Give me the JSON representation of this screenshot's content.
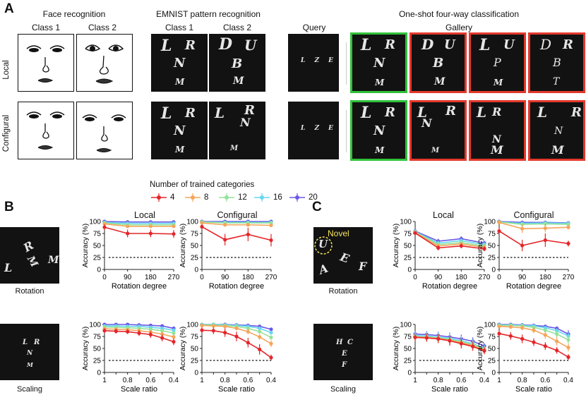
{
  "panel_labels": {
    "a": "A",
    "b": "B",
    "c": "C"
  },
  "sectionA": {
    "face_title": "Face recognition",
    "emnist_title": "EMNIST pattern recognition",
    "oneshot_title": "One-shot four-way classification",
    "class1": "Class 1",
    "class2": "Class 2",
    "query": "Query",
    "gallery": "Gallery",
    "row_local": "Local",
    "row_configural": "Configural",
    "emnist_local": [
      [
        "L",
        "R",
        "N",
        "M"
      ],
      [
        "D",
        "U",
        "B",
        "M"
      ]
    ],
    "emnist_configural": [
      [
        "L",
        "R",
        "N",
        "M"
      ],
      [
        "L",
        "R",
        "N",
        "M"
      ]
    ],
    "gallery_local": [
      [
        "L",
        "R",
        "N",
        "M"
      ],
      [
        "D",
        "U",
        "B",
        "M"
      ],
      [
        "L",
        "U",
        "P",
        "M"
      ],
      [
        "D",
        "R",
        "B",
        "T"
      ]
    ],
    "gallery_configural": [
      [
        "L",
        "R",
        "N",
        "M"
      ],
      [
        "L",
        "R",
        "N",
        "M"
      ],
      [
        "L",
        "R",
        "N",
        "M"
      ],
      [
        "L",
        "R",
        "N",
        "M"
      ]
    ],
    "query_glyphs": "L Z E"
  },
  "legend": {
    "title": "Number of trained categories",
    "items": [
      {
        "label": "4",
        "color": "#e4262a"
      },
      {
        "label": "8",
        "color": "#f5a55a"
      },
      {
        "label": "12",
        "color": "#95e29a"
      },
      {
        "label": "16",
        "color": "#66d7ef"
      },
      {
        "label": "20",
        "color": "#6a58e6"
      }
    ]
  },
  "sectionB": {
    "col_local": "Local",
    "col_configural": "Configural",
    "rot_caption": "Rotation",
    "scale_caption": "Scaling",
    "rot_glyphs": [
      "L",
      "R",
      "M",
      "M"
    ],
    "scale_glyphs": [
      "L",
      "R",
      "N",
      "M"
    ]
  },
  "sectionC": {
    "col_local": "Local",
    "col_configural": "Configural",
    "rot_caption": "Rotation",
    "scale_caption": "Scaling",
    "novel": "Novel",
    "rot_glyphs": [
      "U",
      "A",
      "E",
      "F"
    ],
    "scale_glyphs": [
      "H",
      "C",
      "E",
      "F"
    ]
  },
  "chart_data": [
    {
      "id": "B-rot-local",
      "type": "line",
      "xlabel": "Rotation degree",
      "ylabel": "Accuracy (%)",
      "x": [
        "0",
        "90",
        "180",
        "270"
      ],
      "ylim": [
        0,
        100
      ],
      "yticks": [
        "0",
        "25",
        "50",
        "75",
        "100"
      ],
      "chance": 25,
      "series": [
        {
          "name": "4",
          "values": [
            88,
            75,
            75,
            74
          ],
          "err": [
            6,
            8,
            8,
            8
          ]
        },
        {
          "name": "8",
          "values": [
            95,
            90,
            90,
            90
          ],
          "err": [
            2,
            2,
            2,
            2
          ]
        },
        {
          "name": "12",
          "values": [
            97,
            93,
            93,
            93
          ],
          "err": [
            1,
            1,
            1,
            1
          ]
        },
        {
          "name": "16",
          "values": [
            98,
            96,
            96,
            96
          ],
          "err": [
            1,
            1,
            1,
            1
          ]
        },
        {
          "name": "20",
          "values": [
            100,
            99,
            99,
            99
          ],
          "err": [
            1,
            1,
            1,
            1
          ]
        }
      ]
    },
    {
      "id": "B-rot-config",
      "type": "line",
      "xlabel": "Rotation degree",
      "ylabel": "Accuracy (%)",
      "x": [
        "0",
        "90",
        "180",
        "270"
      ],
      "ylim": [
        0,
        100
      ],
      "yticks": [
        "0",
        "25",
        "50",
        "75",
        "100"
      ],
      "chance": 25,
      "series": [
        {
          "name": "4",
          "values": [
            89,
            62,
            73,
            61
          ],
          "err": [
            5,
            12,
            14,
            13
          ]
        },
        {
          "name": "8",
          "values": [
            97,
            93,
            93,
            92
          ],
          "err": [
            2,
            3,
            3,
            3
          ]
        },
        {
          "name": "12",
          "values": [
            99,
            97,
            97,
            97
          ],
          "err": [
            1,
            1,
            1,
            1
          ]
        },
        {
          "name": "16",
          "values": [
            99,
            98,
            98,
            98
          ],
          "err": [
            1,
            1,
            1,
            1
          ]
        },
        {
          "name": "20",
          "values": [
            100,
            100,
            100,
            100
          ],
          "err": [
            0,
            0,
            0,
            0
          ]
        }
      ]
    },
    {
      "id": "B-scale-local",
      "type": "line",
      "xlabel": "Scale ratio",
      "ylabel": "Accuracy (%)",
      "x": [
        "1",
        "0.9",
        "0.8",
        "0.7",
        "0.6",
        "0.5",
        "0.4"
      ],
      "xticks": [
        "1",
        "0.8",
        "0.6",
        "0.4"
      ],
      "ylim": [
        0,
        100
      ],
      "yticks": [
        "0",
        "25",
        "50",
        "75",
        "100"
      ],
      "chance": 25,
      "series": [
        {
          "name": "4",
          "values": [
            87,
            86,
            85,
            82,
            79,
            72,
            64
          ],
          "err": [
            5,
            5,
            5,
            6,
            7,
            7,
            7
          ]
        },
        {
          "name": "8",
          "values": [
            91,
            90,
            89,
            87,
            84,
            80,
            74
          ],
          "err": [
            3,
            3,
            3,
            4,
            4,
            5,
            5
          ]
        },
        {
          "name": "12",
          "values": [
            95,
            94,
            93,
            92,
            90,
            87,
            82
          ],
          "err": [
            2,
            2,
            2,
            2,
            3,
            3,
            3
          ]
        },
        {
          "name": "16",
          "values": [
            97,
            97,
            96,
            96,
            94,
            92,
            88
          ],
          "err": [
            1,
            1,
            1,
            1,
            2,
            2,
            2
          ]
        },
        {
          "name": "20",
          "values": [
            100,
            100,
            100,
            99,
            98,
            97,
            92
          ],
          "err": [
            1,
            1,
            1,
            1,
            1,
            1,
            1
          ]
        }
      ]
    },
    {
      "id": "B-scale-config",
      "type": "line",
      "xlabel": "Scale ratio",
      "ylabel": "Accuracy (%)",
      "x": [
        "1",
        "0.9",
        "0.8",
        "0.7",
        "0.6",
        "0.5",
        "0.4"
      ],
      "xticks": [
        "1",
        "0.8",
        "0.6",
        "0.4"
      ],
      "ylim": [
        0,
        100
      ],
      "yticks": [
        "0",
        "25",
        "50",
        "75",
        "100"
      ],
      "chance": 25,
      "series": [
        {
          "name": "4",
          "values": [
            88,
            87,
            83,
            75,
            62,
            48,
            31
          ],
          "err": [
            6,
            7,
            9,
            10,
            10,
            11,
            6
          ]
        },
        {
          "name": "8",
          "values": [
            98,
            97,
            96,
            92,
            85,
            74,
            60
          ],
          "err": [
            2,
            2,
            3,
            4,
            5,
            6,
            7
          ]
        },
        {
          "name": "12",
          "values": [
            99,
            99,
            98,
            96,
            92,
            85,
            73
          ],
          "err": [
            1,
            1,
            1,
            2,
            3,
            4,
            5
          ]
        },
        {
          "name": "16",
          "values": [
            100,
            100,
            99,
            98,
            96,
            92,
            83
          ],
          "err": [
            0,
            0,
            1,
            1,
            2,
            3,
            4
          ]
        },
        {
          "name": "20",
          "values": [
            100,
            100,
            100,
            99,
            98,
            96,
            90
          ],
          "err": [
            0,
            0,
            0,
            1,
            1,
            2,
            3
          ]
        }
      ]
    },
    {
      "id": "C-rot-local",
      "type": "line",
      "xlabel": "Rotation degree",
      "ylabel": "Accuracy (%)",
      "x": [
        "0",
        "90",
        "180",
        "270"
      ],
      "ylim": [
        0,
        100
      ],
      "yticks": [
        "0",
        "25",
        "50",
        "75",
        "100"
      ],
      "chance": 25,
      "series": [
        {
          "name": "4",
          "values": [
            76,
            45,
            49,
            43
          ],
          "err": [
            4,
            5,
            5,
            5
          ]
        },
        {
          "name": "8",
          "values": [
            77,
            49,
            53,
            46
          ],
          "err": [
            4,
            5,
            5,
            5
          ]
        },
        {
          "name": "12",
          "values": [
            78,
            52,
            56,
            49
          ],
          "err": [
            4,
            5,
            5,
            5
          ]
        },
        {
          "name": "16",
          "values": [
            79,
            55,
            60,
            52
          ],
          "err": [
            4,
            5,
            5,
            5
          ]
        },
        {
          "name": "20",
          "values": [
            80,
            59,
            64,
            55
          ],
          "err": [
            4,
            5,
            5,
            5
          ]
        }
      ]
    },
    {
      "id": "C-rot-config",
      "type": "line",
      "xlabel": "Rotation degree",
      "ylabel": "Accuracy (%)",
      "x": [
        "0",
        "90",
        "180",
        "270"
      ],
      "ylim": [
        0,
        100
      ],
      "yticks": [
        "0",
        "25",
        "50",
        "75",
        "100"
      ],
      "chance": 25,
      "series": [
        {
          "name": "4",
          "values": [
            80,
            50,
            61,
            54
          ],
          "err": [
            7,
            12,
            14,
            6
          ]
        },
        {
          "name": "8",
          "values": [
            98,
            85,
            86,
            88
          ],
          "err": [
            2,
            9,
            9,
            5
          ]
        },
        {
          "name": "12",
          "values": [
            99,
            94,
            95,
            94
          ],
          "err": [
            1,
            3,
            3,
            3
          ]
        },
        {
          "name": "16",
          "values": [
            99,
            96,
            97,
            96
          ],
          "err": [
            1,
            2,
            2,
            2
          ]
        },
        {
          "name": "20",
          "values": [
            100,
            98,
            98,
            97
          ],
          "err": [
            0,
            1,
            1,
            1
          ]
        }
      ]
    },
    {
      "id": "C-scale-local",
      "type": "line",
      "xlabel": "Scale ratio",
      "ylabel": "Accuracy (%)",
      "x": [
        "1",
        "0.9",
        "0.8",
        "0.7",
        "0.6",
        "0.5",
        "0.4"
      ],
      "xticks": [
        "1",
        "0.8",
        "0.6",
        "0.4"
      ],
      "ylim": [
        0,
        100
      ],
      "yticks": [
        "0",
        "25",
        "50",
        "75",
        "100"
      ],
      "chance": 25,
      "series": [
        {
          "name": "4",
          "values": [
            73,
            72,
            70,
            66,
            60,
            54,
            45
          ],
          "err": [
            7,
            8,
            9,
            10,
            10,
            9,
            7
          ]
        },
        {
          "name": "8",
          "values": [
            74,
            73,
            71,
            67,
            62,
            56,
            47
          ],
          "err": [
            7,
            8,
            9,
            10,
            10,
            9,
            7
          ]
        },
        {
          "name": "12",
          "values": [
            75,
            74,
            72,
            69,
            64,
            58,
            48
          ],
          "err": [
            7,
            8,
            9,
            10,
            10,
            9,
            7
          ]
        },
        {
          "name": "16",
          "values": [
            77,
            76,
            74,
            71,
            66,
            60,
            50
          ],
          "err": [
            7,
            8,
            9,
            10,
            10,
            9,
            7
          ]
        },
        {
          "name": "20",
          "values": [
            80,
            79,
            77,
            74,
            70,
            65,
            55
          ],
          "err": [
            6,
            7,
            8,
            9,
            9,
            8,
            6
          ]
        }
      ]
    },
    {
      "id": "C-scale-config",
      "type": "line",
      "xlabel": "Scale ratio",
      "ylabel": "Accuracy (%)",
      "x": [
        "1",
        "0.9",
        "0.8",
        "0.7",
        "0.6",
        "0.5",
        "0.4"
      ],
      "xticks": [
        "1",
        "0.8",
        "0.6",
        "0.4"
      ],
      "ylim": [
        0,
        100
      ],
      "yticks": [
        "0",
        "25",
        "50",
        "75",
        "100"
      ],
      "chance": 25,
      "series": [
        {
          "name": "4",
          "values": [
            81,
            76,
            70,
            63,
            55,
            46,
            32
          ],
          "err": [
            6,
            8,
            9,
            8,
            8,
            7,
            6
          ]
        },
        {
          "name": "8",
          "values": [
            96,
            95,
            93,
            88,
            78,
            65,
            52
          ],
          "err": [
            3,
            4,
            5,
            6,
            8,
            9,
            8
          ]
        },
        {
          "name": "12",
          "values": [
            98,
            98,
            97,
            94,
            88,
            80,
            68
          ],
          "err": [
            1,
            2,
            2,
            3,
            5,
            7,
            8
          ]
        },
        {
          "name": "16",
          "values": [
            99,
            99,
            98,
            97,
            93,
            87,
            76
          ],
          "err": [
            1,
            1,
            1,
            2,
            3,
            5,
            7
          ]
        },
        {
          "name": "20",
          "values": [
            100,
            100,
            99,
            98,
            96,
            92,
            80
          ],
          "err": [
            0,
            0,
            1,
            1,
            2,
            4,
            8
          ]
        }
      ]
    }
  ]
}
